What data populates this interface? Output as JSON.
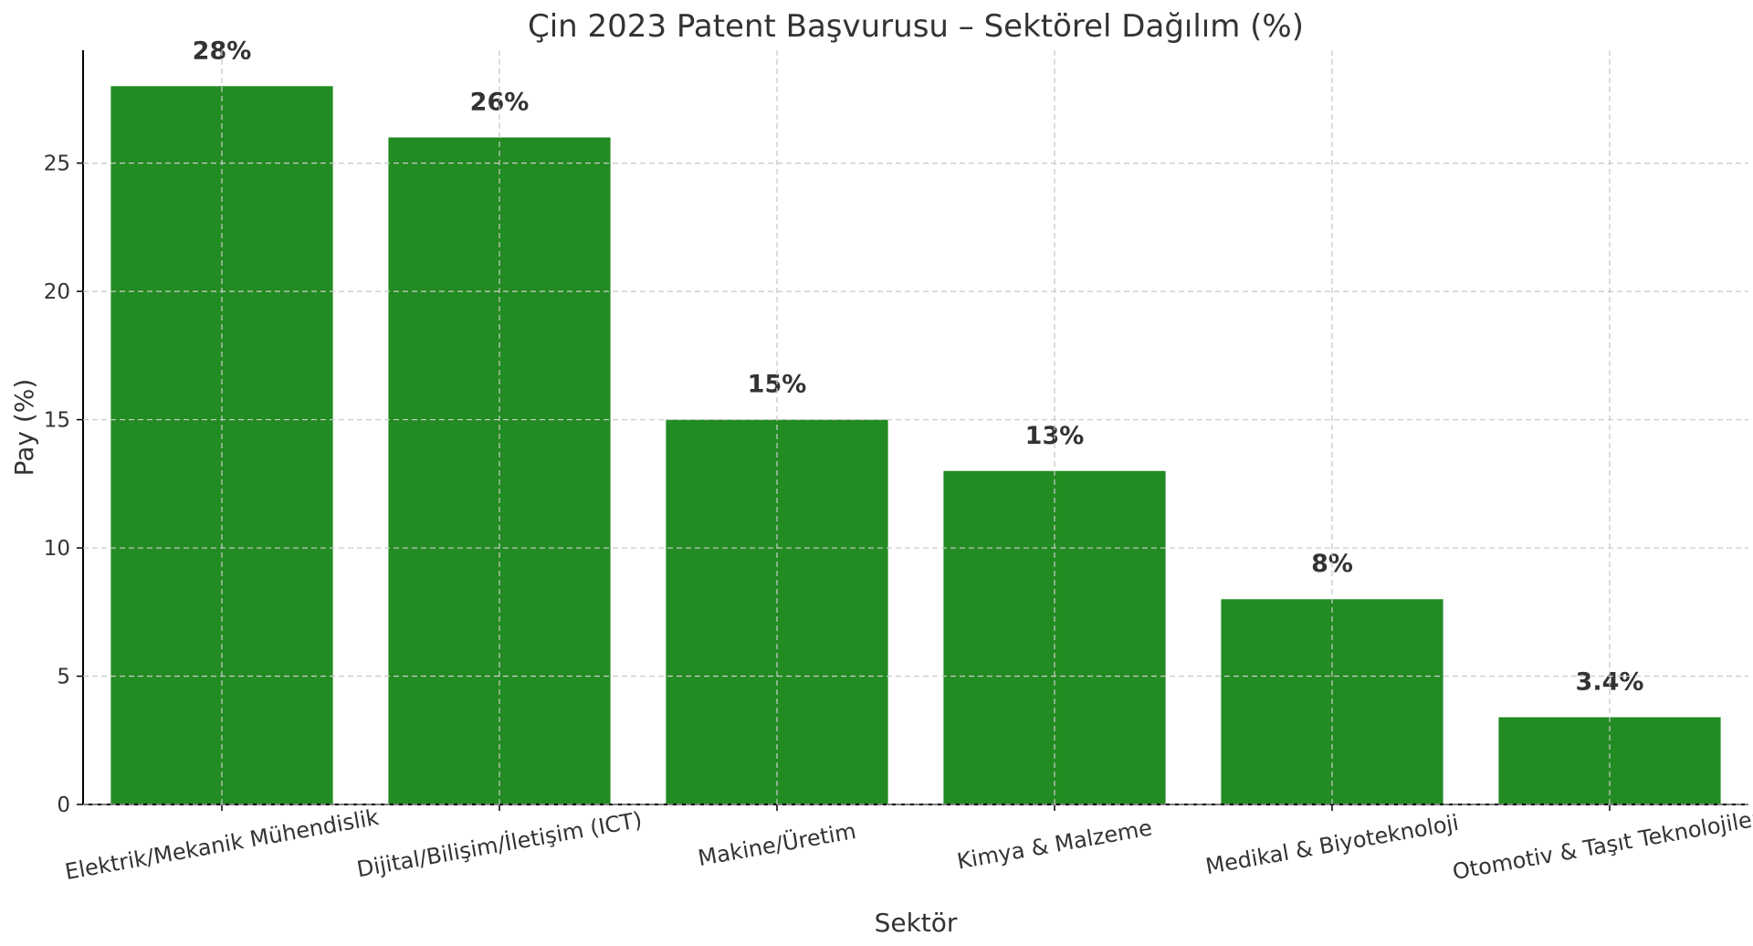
{
  "chart_data": {
    "type": "bar",
    "title": "Çin 2023 Patent Başvurusu – Sektörel Dağılım (%)",
    "xlabel": "Sektör",
    "ylabel": "Pay (%)",
    "categories": [
      "Elektrik/Mekanik Mühendislik",
      "Dijital/Bilişim/İletişim (ICT)",
      "Makine/Üretim",
      "Kimya & Malzeme",
      "Medikal & Biyoteknoloji",
      "Otomotiv & Taşıt Teknolojileri"
    ],
    "values": [
      28,
      26,
      15,
      13,
      8,
      3.4
    ],
    "value_labels": [
      "28%",
      "26%",
      "15%",
      "13%",
      "8%",
      "3.4%"
    ],
    "ylim": [
      0,
      29.4
    ],
    "yticks": [
      0,
      5,
      10,
      15,
      20,
      25
    ],
    "ytick_labels": [
      "0",
      "5",
      "10",
      "15",
      "20",
      "25"
    ],
    "bar_color": "#228b22",
    "grid": true,
    "legend": "none"
  }
}
